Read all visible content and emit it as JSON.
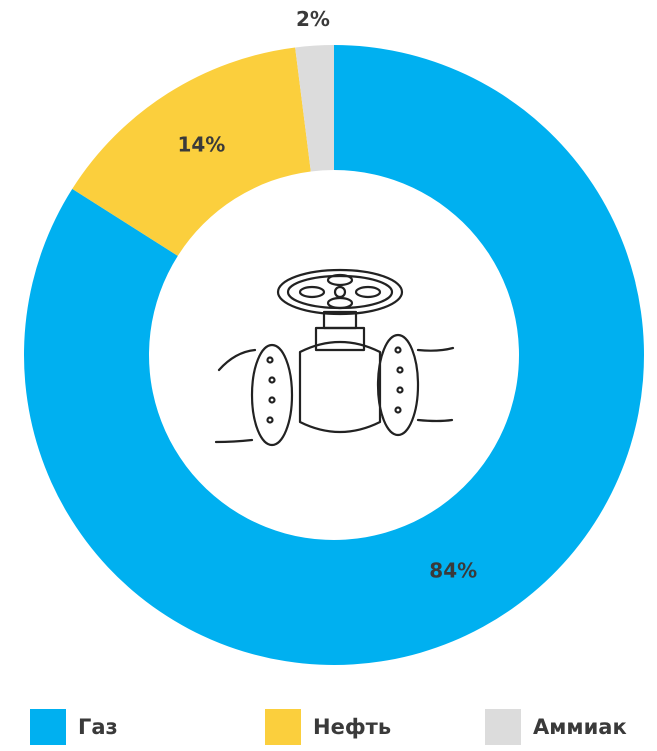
{
  "chart_data": {
    "type": "pie",
    "donut": true,
    "categories": [
      "Газ",
      "Нефть",
      "Аммиак"
    ],
    "values": [
      84,
      14,
      2
    ],
    "value_labels": [
      "84%",
      "14%",
      "2%"
    ],
    "colors": [
      "#00b0f0",
      "#fbcf3d",
      "#dcdcdc"
    ]
  }
}
